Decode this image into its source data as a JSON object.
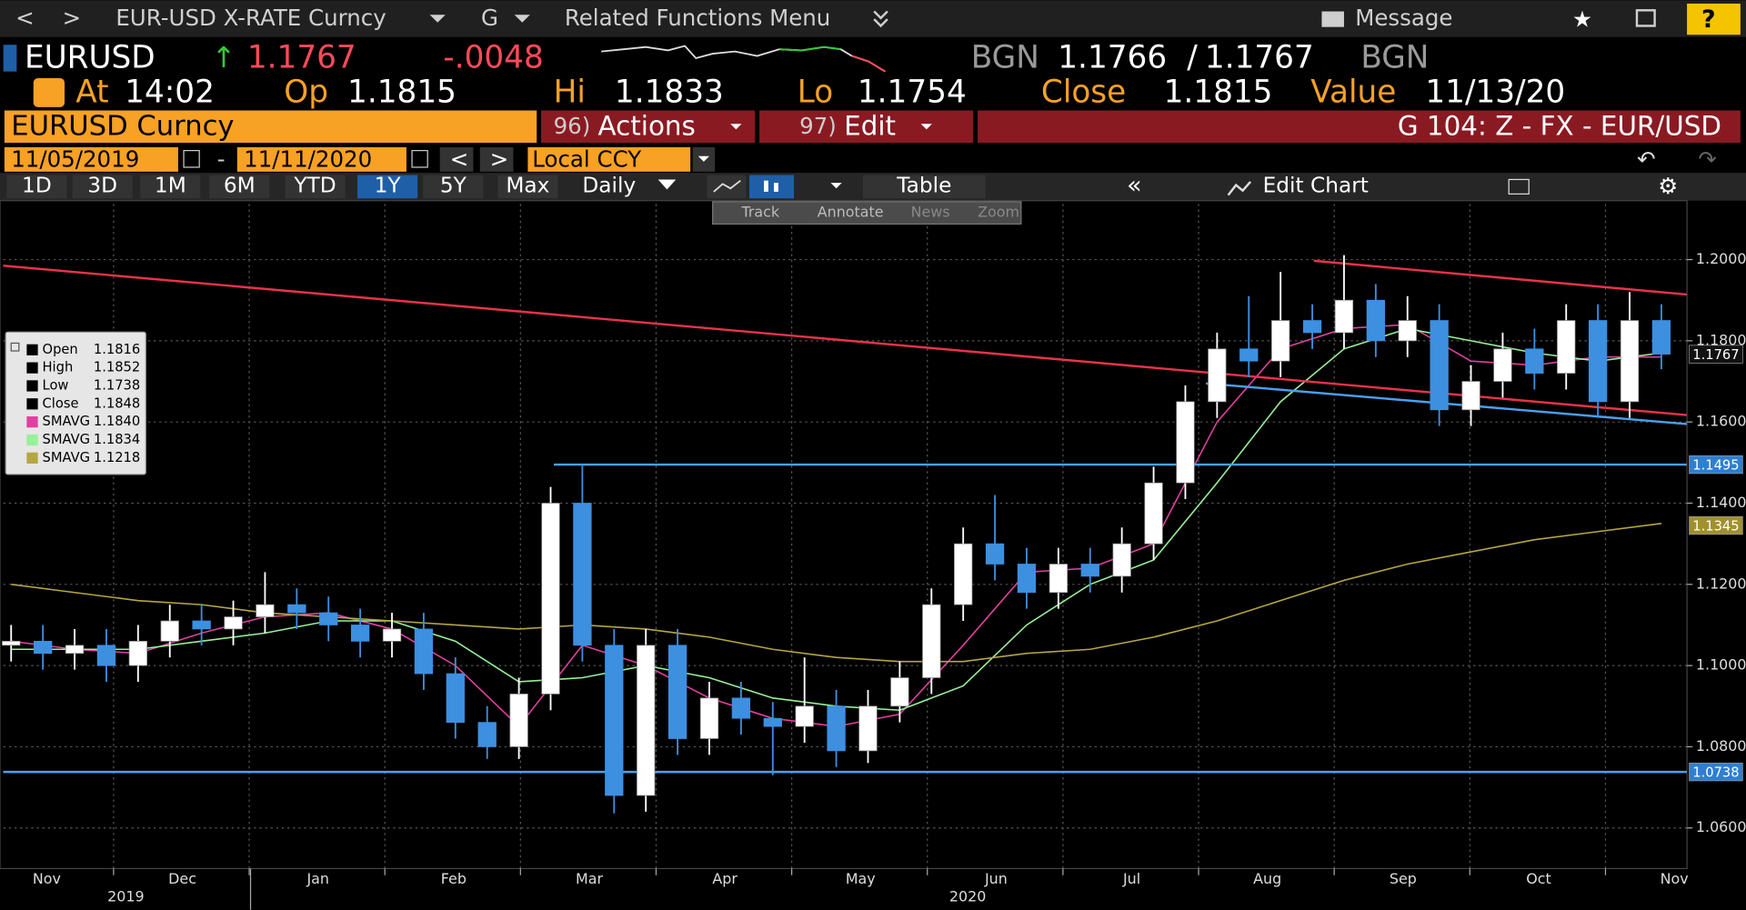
{
  "toolbar": {
    "back": "<",
    "forward": ">",
    "security": "EUR-USD X-RATE Curncy",
    "launch": "G",
    "menu": "Related Functions Menu",
    "message": "Message",
    "help": "?"
  },
  "quote": {
    "ticker": "EURUSD",
    "last": "1.1767",
    "change": "-.0048",
    "source": "BGN",
    "bid": "1.1766",
    "separator": "/",
    "ask": "1.1767",
    "source2": "BGN",
    "at_label": "At",
    "at": "14:02",
    "open_label": "Op",
    "open": "1.1815",
    "high_label": "Hi",
    "high": "1.1833",
    "low_label": "Lo",
    "low": "1.1754",
    "close_label": "Close",
    "close": "1.1815",
    "value_label": "Value",
    "value": "11/13/20"
  },
  "menu_bar": {
    "security": "EURUSD Curncy",
    "actions_num": "96)",
    "actions": "Actions",
    "edit_num": "97)",
    "edit": "Edit",
    "function": "G 104: Z - FX - EUR/USD"
  },
  "date_bar": {
    "start": "11/05/2019",
    "dash": "-",
    "end": "11/11/2020",
    "prev": "<",
    "next": ">",
    "currency": "Local CCY"
  },
  "period_bar": {
    "periods": [
      "1D",
      "3D",
      "1M",
      "6M",
      "YTD",
      "1Y",
      "5Y",
      "Max"
    ],
    "frequency": "Daily",
    "table": "Table",
    "edit_chart": "Edit Chart"
  },
  "chart_tools": [
    "Track",
    "Annotate",
    "News",
    "Zoom"
  ],
  "chart_data": {
    "type": "candlestick",
    "grid": true,
    "ylim": [
      1.05,
      1.2137
    ],
    "yticks": [
      {
        "value": 1.06,
        "label": "1.0600"
      },
      {
        "value": 1.08,
        "label": "1.0800"
      },
      {
        "value": 1.1,
        "label": "1.1000"
      },
      {
        "value": 1.12,
        "label": "1.1200"
      },
      {
        "value": 1.14,
        "label": "1.1400"
      },
      {
        "value": 1.16,
        "label": "1.1600"
      },
      {
        "value": 1.18,
        "label": "1.1800"
      },
      {
        "value": 1.2,
        "label": "1.2000"
      }
    ],
    "months": [
      "Nov",
      "Dec",
      "Jan",
      "Feb",
      "Mar",
      "Apr",
      "May",
      "Jun",
      "Jul",
      "Aug",
      "Sep",
      "Oct",
      "Nov"
    ],
    "years": [
      "2019",
      "2020"
    ],
    "up_color": "#ffffff",
    "down_color": "#3d8fe0",
    "open": [
      1.105,
      1.106,
      1.103,
      1.105,
      1.1,
      1.106,
      1.111,
      1.109,
      1.112,
      1.115,
      1.113,
      1.11,
      1.106,
      1.109,
      1.098,
      1.086,
      1.08,
      1.093,
      1.14,
      1.105,
      1.068,
      1.105,
      1.082,
      1.092,
      1.087,
      1.085,
      1.09,
      1.079,
      1.09,
      1.097,
      1.115,
      1.13,
      1.125,
      1.118,
      1.125,
      1.122,
      1.13,
      1.145,
      1.165,
      1.178,
      1.175,
      1.185,
      1.182,
      1.19,
      1.18,
      1.185,
      1.163,
      1.17,
      1.178,
      1.172,
      1.185,
      1.165,
      1.185
    ],
    "high": [
      1.11,
      1.11,
      1.109,
      1.109,
      1.11,
      1.115,
      1.115,
      1.116,
      1.123,
      1.119,
      1.117,
      1.114,
      1.113,
      1.113,
      1.102,
      1.09,
      1.097,
      1.144,
      1.1495,
      1.109,
      1.109,
      1.109,
      1.096,
      1.096,
      1.091,
      1.102,
      1.094,
      1.094,
      1.101,
      1.119,
      1.134,
      1.142,
      1.129,
      1.129,
      1.129,
      1.134,
      1.149,
      1.169,
      1.182,
      1.191,
      1.197,
      1.189,
      1.2011,
      1.194,
      1.191,
      1.189,
      1.174,
      1.182,
      1.183,
      1.189,
      1.189,
      1.192,
      1.189
    ],
    "low": [
      1.101,
      1.099,
      1.099,
      1.096,
      1.096,
      1.102,
      1.105,
      1.105,
      1.108,
      1.109,
      1.106,
      1.102,
      1.102,
      1.094,
      1.082,
      1.077,
      1.077,
      1.089,
      1.101,
      1.0636,
      1.064,
      1.078,
      1.078,
      1.083,
      1.073,
      1.081,
      1.075,
      1.076,
      1.086,
      1.093,
      1.111,
      1.121,
      1.114,
      1.114,
      1.118,
      1.118,
      1.126,
      1.141,
      1.161,
      1.171,
      1.171,
      1.178,
      1.178,
      1.176,
      1.176,
      1.159,
      1.159,
      1.166,
      1.168,
      1.168,
      1.161,
      1.161,
      1.173
    ],
    "close": [
      1.106,
      1.103,
      1.105,
      1.1,
      1.106,
      1.111,
      1.109,
      1.112,
      1.115,
      1.113,
      1.11,
      1.106,
      1.109,
      1.098,
      1.086,
      1.08,
      1.093,
      1.14,
      1.105,
      1.068,
      1.105,
      1.082,
      1.092,
      1.087,
      1.085,
      1.09,
      1.079,
      1.09,
      1.097,
      1.115,
      1.13,
      1.125,
      1.118,
      1.125,
      1.122,
      1.13,
      1.145,
      1.165,
      1.178,
      1.175,
      1.185,
      1.182,
      1.19,
      1.18,
      1.185,
      1.163,
      1.17,
      1.178,
      1.172,
      1.185,
      1.165,
      1.185,
      1.1767
    ],
    "series": [
      {
        "name": "SMAVG",
        "color": "#e040a0",
        "values": [
          1.106,
          1.104,
          1.103,
          1.108,
          1.112,
          1.113,
          1.109,
          1.1,
          1.085,
          1.105,
          1.1,
          1.092,
          1.087,
          1.085,
          1.088,
          1.105,
          1.123,
          1.124,
          1.13,
          1.16,
          1.178,
          1.183,
          1.184,
          1.175,
          1.174,
          1.176,
          1.176
        ]
      },
      {
        "name": "SMAVG",
        "color": "#98f098",
        "values": [
          1.104,
          1.104,
          1.104,
          1.106,
          1.108,
          1.111,
          1.111,
          1.106,
          1.096,
          1.097,
          1.1,
          1.097,
          1.092,
          1.09,
          1.089,
          1.095,
          1.11,
          1.12,
          1.126,
          1.145,
          1.165,
          1.178,
          1.183,
          1.18,
          1.177,
          1.175,
          1.177
        ]
      },
      {
        "name": "SMAVG",
        "color": "#b5a642",
        "values": [
          1.12,
          1.118,
          1.116,
          1.115,
          1.113,
          1.112,
          1.111,
          1.11,
          1.109,
          1.11,
          1.109,
          1.107,
          1.104,
          1.102,
          1.101,
          1.101,
          1.103,
          1.104,
          1.107,
          1.111,
          1.116,
          1.121,
          1.125,
          1.128,
          1.131,
          1.133,
          1.135
        ]
      }
    ],
    "trend_lines": [
      {
        "color": "#e8334a",
        "x": [
          -0.25,
          52.8
        ],
        "y": [
          1.1985,
          1.1617
        ]
      },
      {
        "color": "#e8334a",
        "x": [
          41.05,
          52.8
        ],
        "y": [
          1.1997,
          1.1914
        ]
      },
      {
        "color": "#4aa0f0",
        "x": [
          37.65,
          52.8
        ],
        "y": [
          1.1695,
          1.1595
        ]
      },
      {
        "color": "#4aa0f0",
        "x": [
          17.1,
          52.8
        ],
        "y": [
          1.1495,
          1.1495
        ]
      },
      {
        "color": "#4aa0f0",
        "x": [
          -0.25,
          52.8
        ],
        "y": [
          1.0738,
          1.0738
        ]
      }
    ],
    "price_labels": [
      {
        "value": 1.1767,
        "label": "1.1767",
        "color": "#111111"
      },
      {
        "value": 1.1495,
        "label": "1.1495",
        "color": "#2f7fd0"
      },
      {
        "value": 1.1345,
        "label": "1.1345",
        "color": "#a09030"
      },
      {
        "value": 1.0738,
        "label": "1.0738",
        "color": "#2f7fd0"
      }
    ],
    "legend": [
      {
        "name": "Open",
        "value": "1.1816",
        "color": "#000000"
      },
      {
        "name": "High",
        "value": "1.1852",
        "color": "#000000"
      },
      {
        "name": "Low",
        "value": "1.1738",
        "color": "#000000"
      },
      {
        "name": "Close",
        "value": "1.1848",
        "color": "#000000"
      },
      {
        "name": "SMAVG",
        "value": "1.1840",
        "color": "#e040a0"
      },
      {
        "name": "SMAVG",
        "value": "1.1834",
        "color": "#98f098"
      },
      {
        "name": "SMAVG",
        "value": "1.1218",
        "color": "#b5a642"
      }
    ]
  }
}
